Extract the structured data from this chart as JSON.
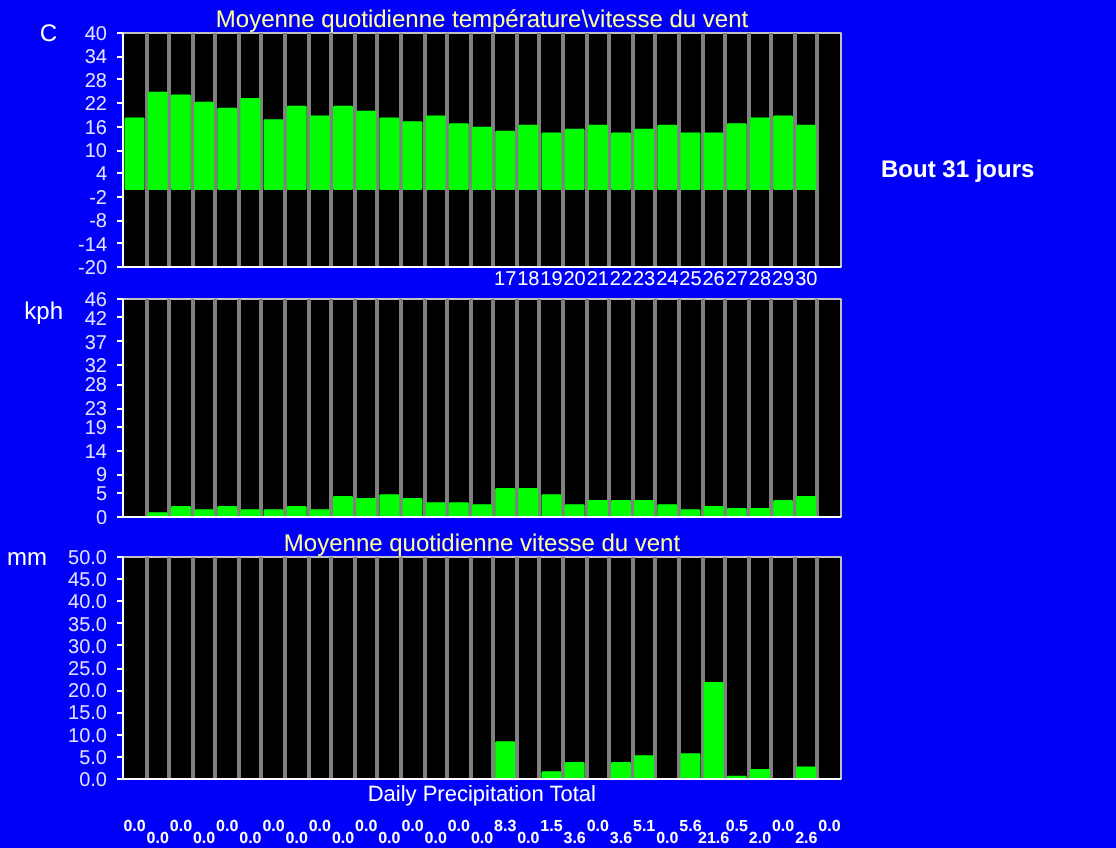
{
  "chart_data": [
    {
      "type": "bar",
      "title": "Moyenne quotidienne température\\vitesse du vent",
      "ylabel": "C",
      "annotations": [
        "Bout 31 jours"
      ],
      "categories": [
        null,
        null,
        null,
        null,
        null,
        null,
        null,
        null,
        null,
        null,
        null,
        null,
        null,
        null,
        null,
        null,
        "17",
        "18",
        "19",
        "20",
        "21",
        "22",
        "23",
        "24",
        "25",
        "26",
        "27",
        "28",
        "29",
        "30",
        null
      ],
      "series": [
        {
          "color": "#00ff00",
          "values": [
            18.1,
            24.7,
            24.0,
            22.1,
            20.6,
            23.1,
            17.6,
            21.1,
            18.6,
            21.1,
            19.8,
            18.1,
            17.1,
            18.6,
            16.6,
            15.7,
            14.7,
            16.2,
            14.2,
            15.2,
            16.2,
            14.2,
            15.2,
            16.2,
            14.2,
            14.2,
            16.6,
            18.1,
            18.6,
            16.2,
            null
          ]
        }
      ],
      "ylim": [
        -20,
        40
      ],
      "yticks": [
        -20,
        -14,
        -8,
        -2,
        4,
        10,
        16,
        22,
        28,
        34,
        40
      ],
      "grid": "x"
    },
    {
      "type": "bar",
      "ylabel": "kph",
      "tick_labels": "y",
      "categories": [
        null,
        null,
        null,
        null,
        null,
        null,
        null,
        null,
        null,
        null,
        null,
        null,
        null,
        null,
        null,
        null,
        null,
        null,
        null,
        null,
        null,
        null,
        null,
        null,
        null,
        null,
        null,
        null,
        null,
        null,
        null
      ],
      "series": [
        {
          "color": "#00ff00",
          "values": [
            null,
            0.8,
            2.1,
            1.4,
            2.1,
            1.4,
            1.4,
            2.1,
            1.4,
            4.2,
            3.8,
            4.6,
            3.8,
            2.9,
            2.9,
            2.5,
            5.9,
            5.9,
            4.6,
            2.5,
            3.4,
            3.4,
            3.4,
            2.5,
            1.4,
            2.1,
            1.7,
            1.7,
            3.4,
            4.2,
            null
          ]
        }
      ],
      "ylim": [
        0,
        46
      ],
      "yticks": [
        0,
        5,
        9,
        14,
        19,
        23,
        28,
        32,
        37,
        42,
        46
      ],
      "grid": "x"
    },
    {
      "type": "bar",
      "title": "Moyenne quotidienne vitesse du vent",
      "xlabel": "Daily Precipitation Total",
      "ylabel": "mm",
      "tick_labels": "y",
      "categories": [
        null,
        null,
        null,
        null,
        null,
        null,
        null,
        null,
        null,
        null,
        null,
        null,
        null,
        null,
        null,
        null,
        null,
        null,
        null,
        null,
        null,
        null,
        null,
        null,
        null,
        null,
        null,
        null,
        null,
        null,
        null
      ],
      "series": [
        {
          "color": "#00ff00",
          "values": [
            0.0,
            0.0,
            0.0,
            0.0,
            0.0,
            0.0,
            0.0,
            0.0,
            0.0,
            0.0,
            0.0,
            0.0,
            0.0,
            0.0,
            0.0,
            0.0,
            8.3,
            0.0,
            1.5,
            3.6,
            0.0,
            3.6,
            5.1,
            0.0,
            5.6,
            21.6,
            0.5,
            2.0,
            0.0,
            2.6,
            0.0
          ],
          "value_labels": [
            "0.0",
            "0.0",
            "0.0",
            "0.0",
            "0.0",
            "0.0",
            "0.0",
            "0.0",
            "0.0",
            "0.0",
            "0.0",
            "0.0",
            "0.0",
            "0.0",
            "0.0",
            "0.0",
            "8.3",
            "0.0",
            "1.5",
            "3.6",
            "0.0",
            "3.6",
            "5.1",
            "0.0",
            "5.6",
            "21.6",
            "0.5",
            "2.0",
            "0.0",
            "2.6",
            "0.0"
          ]
        }
      ],
      "ylim": [
        0,
        50
      ],
      "yticks": [
        {
          "value": 0,
          "label": "0.0"
        },
        {
          "value": 5,
          "label": "5.0"
        },
        {
          "value": 10,
          "label": "10.0"
        },
        {
          "value": 15,
          "label": "15.0"
        },
        {
          "value": 20,
          "label": "20.0"
        },
        {
          "value": 25,
          "label": "25.0"
        },
        {
          "value": 30,
          "label": "30.0"
        },
        {
          "value": 35,
          "label": "35.0"
        },
        {
          "value": 40,
          "label": "40.0"
        },
        {
          "value": 45,
          "label": "45.0"
        },
        {
          "value": 50,
          "label": "50.0"
        }
      ],
      "grid": "x"
    }
  ]
}
